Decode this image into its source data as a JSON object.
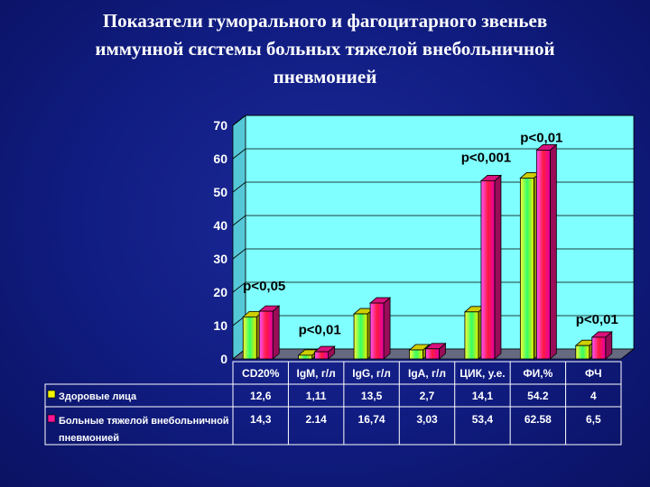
{
  "title": "Показатели гуморального и фагоцитарного звеньев иммунной системы больных тяжелой внебольничной пневмонией",
  "colors": {
    "healthy": "#f2f200",
    "patients": "#ff1493",
    "plot_background": "#7fffff",
    "slide_background": "#12207f"
  },
  "chart_data": {
    "type": "bar",
    "title": "Показатели гуморального и фагоцитарного звеньев иммунной системы больных тяжелой внебольничной пневмонией",
    "categories": [
      "CD20%",
      "IgM, г/л",
      "IgG, г/л",
      "IgA, г/л",
      "ЦИК, у.е.",
      "ФИ,%",
      "ФЧ"
    ],
    "series": [
      {
        "name": "Здоровые лица",
        "values": [
          12.6,
          1.11,
          13.5,
          2.7,
          14.1,
          54.2,
          4
        ]
      },
      {
        "name": "Больные тяжелой внебольничной пневмонией",
        "values": [
          14.3,
          2.14,
          16.74,
          3.03,
          53.4,
          62.58,
          6.5
        ]
      }
    ],
    "table": [
      [
        "12,6",
        "1,11",
        "13,5",
        "2,7",
        "14,1",
        "54.2",
        "4"
      ],
      [
        "14,3",
        "2.14",
        "16,74",
        "3,03",
        "53,4",
        "62.58",
        "6,5"
      ]
    ],
    "annotations": [
      {
        "text": "p<0,05",
        "category": "CD20%",
        "y": 20.5
      },
      {
        "text": "p<0,01",
        "category": "IgM, г/л",
        "y": 7.5
      },
      {
        "text": "p<0,001",
        "category": "ЦИК, у.е.",
        "y": 59
      },
      {
        "text": "p<0,01",
        "category": "ФИ,%",
        "y": 65
      },
      {
        "text": "p<0,01",
        "category": "ФЧ",
        "y": 10.5
      }
    ],
    "ylim": [
      0,
      70
    ],
    "yticks": [
      0,
      10,
      20,
      30,
      40,
      50,
      60,
      70
    ],
    "grid": true,
    "legend": "data-table-left",
    "xlabel": "",
    "ylabel": ""
  }
}
